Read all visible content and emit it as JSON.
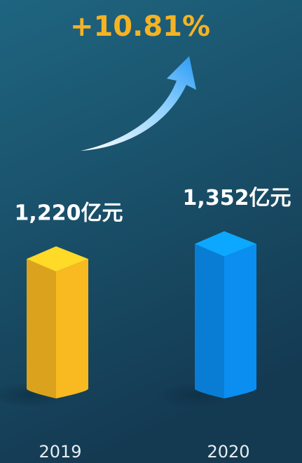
{
  "chart_data": {
    "type": "bar3d",
    "annotation": "+10.81%",
    "categories": [
      "2019",
      "2020"
    ],
    "values": [
      1220,
      1352
    ],
    "value_labels": [
      "1,220亿元",
      "1,352亿元"
    ],
    "colors": [
      "#f9b921",
      "#0a8ef0"
    ]
  }
}
